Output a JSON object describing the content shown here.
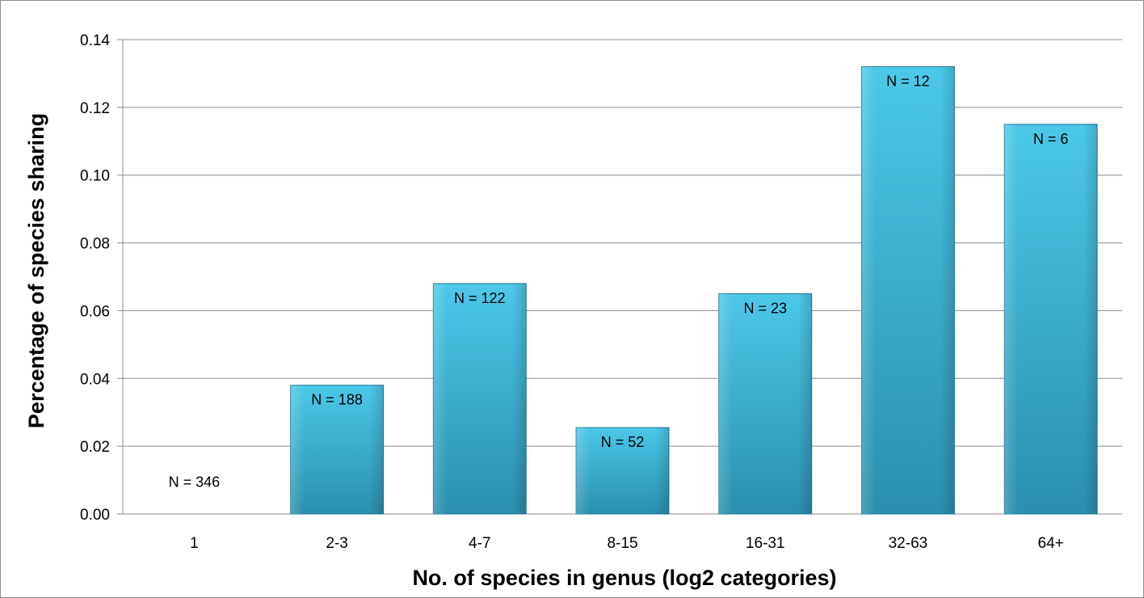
{
  "chart_data": {
    "type": "bar",
    "title": "",
    "xlabel": "No. of species in genus (log2 categories)",
    "ylabel": "Percentage of species sharing",
    "categories": [
      "1",
      "2-3",
      "4-7",
      "8-15",
      "16-31",
      "32-63",
      "64+"
    ],
    "values": [
      0.0,
      0.038,
      0.068,
      0.0255,
      0.065,
      0.132,
      0.115
    ],
    "data_labels": [
      "N = 346",
      "N = 188",
      "N = 122",
      "N = 52",
      "N = 23",
      "N = 12",
      "N = 6"
    ],
    "ylim": [
      0,
      0.14
    ],
    "y_ticks": [
      "0.00",
      "0.02",
      "0.04",
      "0.06",
      "0.08",
      "0.10",
      "0.12",
      "0.14"
    ],
    "grid": true,
    "legend": "none",
    "colors": {
      "bar_top": "#4cc8ea",
      "bar_bottom": "#2a8fae",
      "bar_edge": "#1f7a96",
      "gridline": "#8c8c8c"
    }
  }
}
